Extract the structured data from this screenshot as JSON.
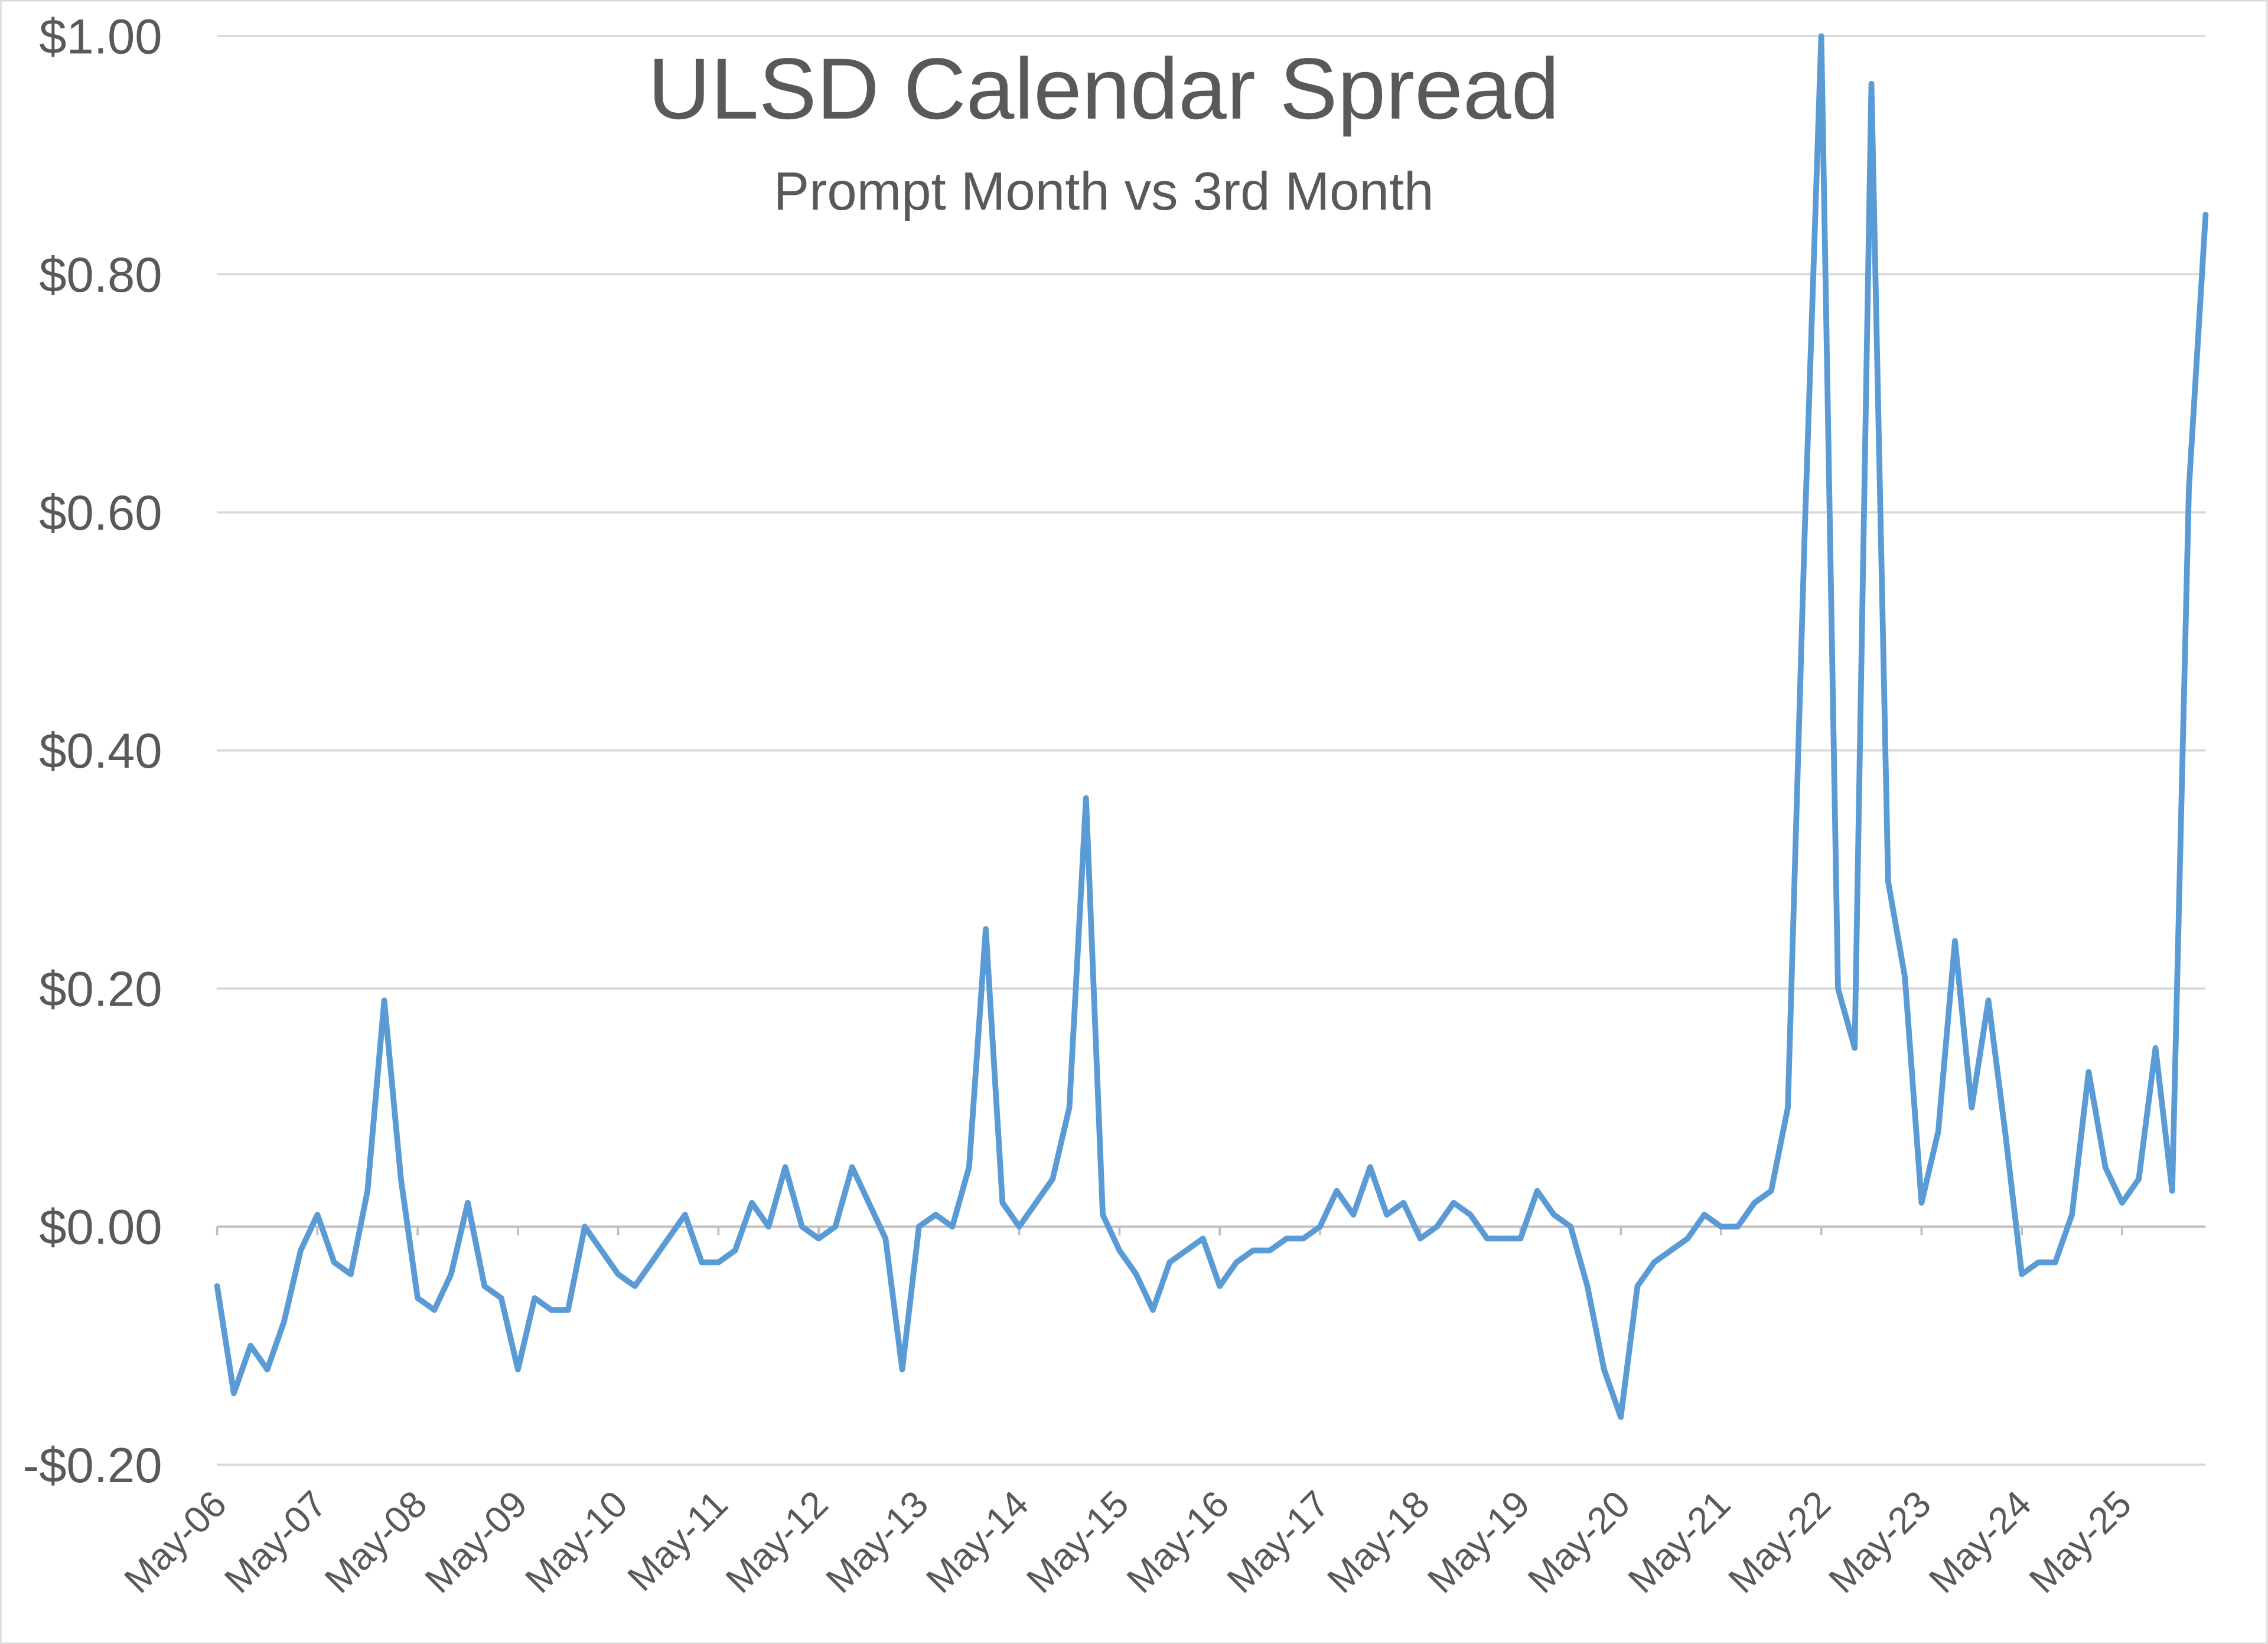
{
  "chart_data": {
    "type": "line",
    "title": "ULSD Calendar Spread",
    "subtitle": "Prompt Month vs 3rd Month",
    "categories": [
      "May-06",
      null,
      null,
      null,
      null,
      null,
      "May-07",
      null,
      null,
      null,
      null,
      null,
      "May-08",
      null,
      null,
      null,
      null,
      null,
      "May-09",
      null,
      null,
      null,
      null,
      null,
      "May-10",
      null,
      null,
      null,
      null,
      null,
      "May-11",
      null,
      null,
      null,
      null,
      null,
      "May-12",
      null,
      null,
      null,
      null,
      null,
      "May-13",
      null,
      null,
      null,
      null,
      null,
      "May-14",
      null,
      null,
      null,
      null,
      null,
      "May-15",
      null,
      null,
      null,
      null,
      null,
      "May-16",
      null,
      null,
      null,
      null,
      null,
      "May-17",
      null,
      null,
      null,
      null,
      null,
      "May-18",
      null,
      null,
      null,
      null,
      null,
      "May-19",
      null,
      null,
      null,
      null,
      null,
      "May-20",
      null,
      null,
      null,
      null,
      null,
      "May-21",
      null,
      null,
      null,
      null,
      null,
      "May-22",
      null,
      null,
      null,
      null,
      null,
      "May-23",
      null,
      null,
      null,
      null,
      null,
      "May-24",
      null,
      null,
      null,
      null,
      null,
      "May-25",
      null,
      null,
      null,
      null,
      null
    ],
    "series": [
      {
        "name": "ULSD Calendar Spread",
        "color": "#5b9bd5",
        "values": [
          -0.05,
          -0.14,
          -0.1,
          -0.12,
          -0.08,
          -0.02,
          0.01,
          -0.03,
          -0.04,
          0.03,
          0.19,
          0.04,
          -0.06,
          -0.07,
          -0.04,
          0.02,
          -0.05,
          -0.06,
          -0.12,
          -0.06,
          -0.07,
          -0.07,
          0.0,
          -0.02,
          -0.04,
          -0.05,
          -0.03,
          -0.01,
          0.01,
          -0.03,
          -0.03,
          -0.02,
          0.02,
          0.0,
          0.05,
          0.0,
          -0.01,
          0.0,
          0.05,
          0.02,
          -0.01,
          -0.12,
          0.0,
          0.01,
          0.0,
          0.05,
          0.25,
          0.02,
          0.0,
          0.02,
          0.04,
          0.1,
          0.36,
          0.01,
          -0.02,
          -0.04,
          -0.07,
          -0.03,
          -0.02,
          -0.01,
          -0.05,
          -0.03,
          -0.02,
          -0.02,
          -0.01,
          -0.01,
          0.0,
          0.03,
          0.01,
          0.05,
          0.01,
          0.02,
          -0.01,
          0.0,
          0.02,
          0.01,
          -0.01,
          -0.01,
          -0.01,
          0.03,
          0.01,
          0.0,
          -0.05,
          -0.12,
          -0.16,
          -0.05,
          -0.03,
          -0.02,
          -0.01,
          0.01,
          0.0,
          0.0,
          0.02,
          0.03,
          0.1,
          0.58,
          1.0,
          0.2,
          0.15,
          0.96,
          0.29,
          0.21,
          0.02,
          0.08,
          0.24,
          0.1,
          0.19,
          0.08,
          -0.04,
          -0.03,
          -0.03,
          0.01,
          0.13,
          0.05,
          0.02,
          0.04,
          0.15,
          0.03,
          0.62,
          0.85
        ]
      }
    ],
    "ylim": [
      -0.2,
      1.0
    ],
    "yticks": [
      {
        "value": -0.2,
        "label": "-$0.20"
      },
      {
        "value": 0,
        "label": "$0.00"
      },
      {
        "value": 0.2,
        "label": "$0.20"
      },
      {
        "value": 0.4,
        "label": "$0.40"
      },
      {
        "value": 0.6,
        "label": "$0.60"
      },
      {
        "value": 0.8,
        "label": "$0.80"
      },
      {
        "value": 1.0,
        "label": "$1.00"
      }
    ],
    "grid": true
  }
}
